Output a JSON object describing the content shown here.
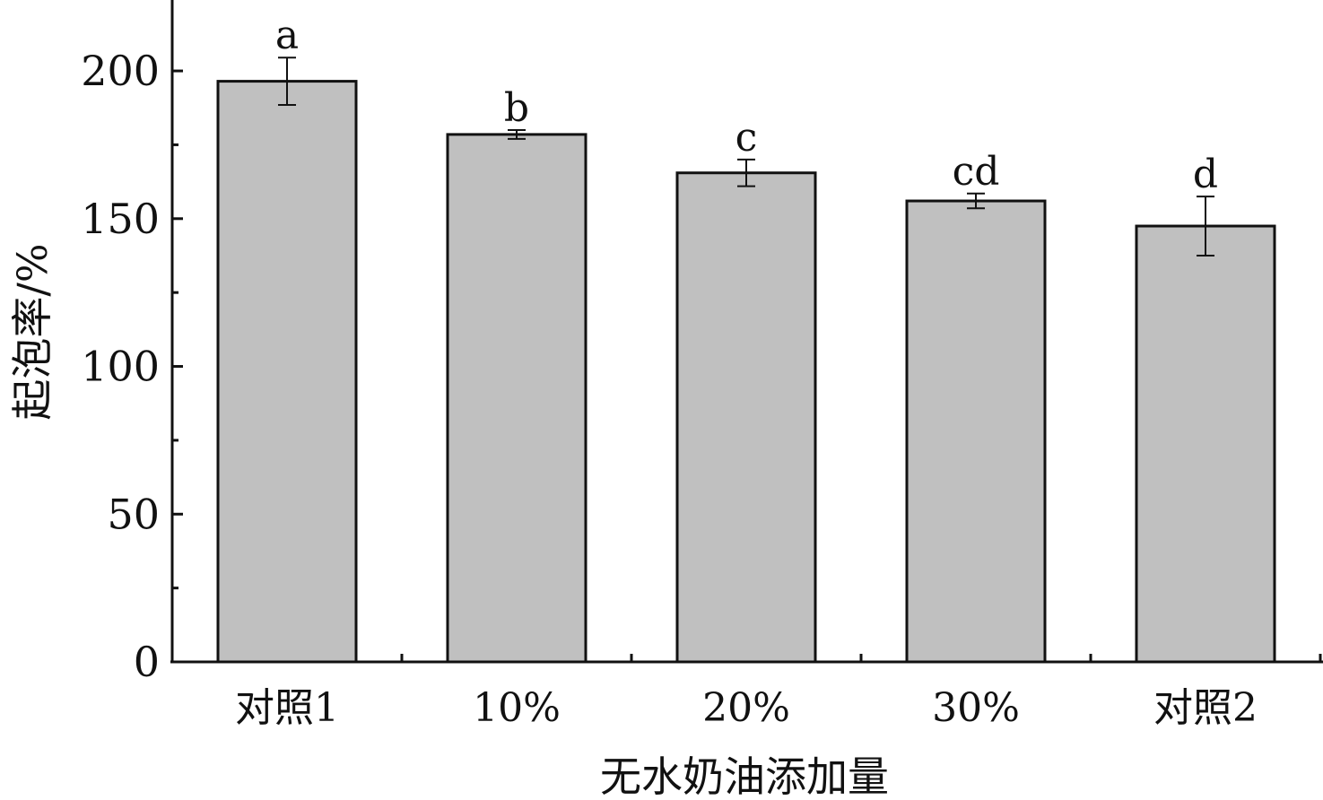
{
  "chart_data": {
    "type": "bar",
    "xlabel": "无水奶油添加量",
    "ylabel": "起泡率/%",
    "categories": [
      "对照1",
      "10%",
      "20%",
      "30%",
      "对照2"
    ],
    "values": [
      196.5,
      178.5,
      165.5,
      156,
      147.5
    ],
    "errors": [
      8,
      1.5,
      4.5,
      2.5,
      10
    ],
    "significance": [
      "a",
      "b",
      "c",
      "cd",
      "d"
    ],
    "ylim": [
      0,
      224
    ],
    "yticks": [
      0,
      50,
      100,
      150,
      200
    ],
    "yminor": [
      25,
      75,
      125,
      175
    ],
    "grid": false,
    "bar_color": "#c0c0c0"
  }
}
